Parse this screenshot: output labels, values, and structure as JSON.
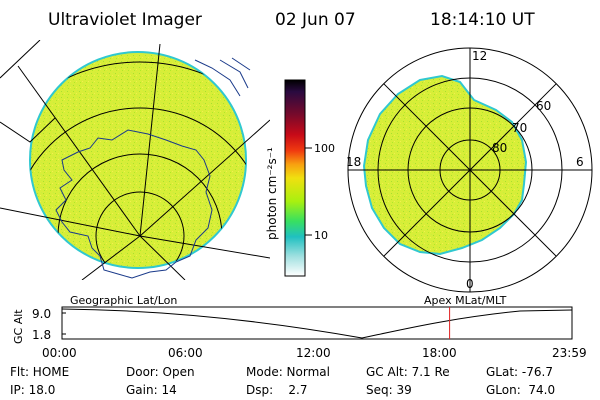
{
  "header": {
    "title": "Ultraviolet Imager",
    "date": "02 Jun 07",
    "time": "18:14:10 UT"
  },
  "colorbar": {
    "unit": "photon cm⁻²s⁻¹",
    "ticks": [
      "100",
      "10"
    ],
    "colors": [
      "#000000",
      "#2a0a40",
      "#7a0a2a",
      "#c80a18",
      "#f03a10",
      "#f8a010",
      "#f0e010",
      "#a8f010",
      "#38e060",
      "#20c0c0",
      "#a0e0e0",
      "#ffffff"
    ]
  },
  "polar": {
    "lat_labels": [
      "60",
      "70",
      "80"
    ],
    "mlt_labels": [
      "12",
      "18",
      "6",
      "0"
    ]
  },
  "panel_labels": {
    "left": "Geographic Lat/Lon",
    "right": "Apex  MLat/MLT"
  },
  "timeline": {
    "ylabel": "GC Alt",
    "y_ticks": [
      "9.0",
      "1.8"
    ],
    "x_ticks": [
      "00:00",
      "06:00",
      "12:00",
      "18:00",
      "23:59"
    ],
    "marker_hour": 18.24,
    "marker_color": "#e02020"
  },
  "status": {
    "row1": [
      {
        "key": "Flt: HOME"
      },
      {
        "key": "Door: Open"
      },
      {
        "key": "Mode: Normal"
      },
      {
        "key": "GC Alt: 7.1 Re"
      },
      {
        "key": "GLat: -76.7"
      }
    ],
    "row2": [
      {
        "key": "IP: 18.0"
      },
      {
        "key": "Gain: 14"
      },
      {
        "key": "Dsp:    2.7"
      },
      {
        "key": "Seq: 39"
      },
      {
        "key": "GLon:  74.0"
      }
    ]
  },
  "image_colors": {
    "emission": "#d8ee38",
    "emission_edge": "#30c8d0",
    "grid": "#000000"
  }
}
